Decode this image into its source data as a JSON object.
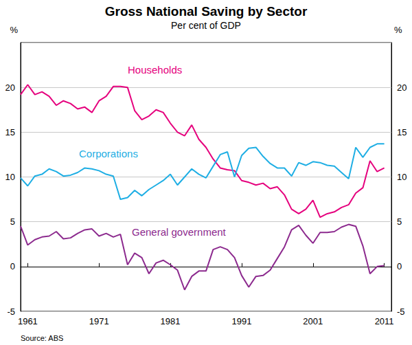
{
  "chart_data": {
    "type": "line",
    "title": "Gross National Saving by Sector",
    "subtitle": "Per cent of GDP",
    "ylabel": "%",
    "y2label": "%",
    "source": "Source: ABS",
    "x": [
      1960,
      1961,
      1962,
      1963,
      1964,
      1965,
      1966,
      1967,
      1968,
      1969,
      1970,
      1971,
      1972,
      1973,
      1974,
      1975,
      1976,
      1977,
      1978,
      1979,
      1980,
      1981,
      1982,
      1983,
      1984,
      1985,
      1986,
      1987,
      1988,
      1989,
      1990,
      1991,
      1992,
      1993,
      1994,
      1995,
      1996,
      1997,
      1998,
      1999,
      2000,
      2001,
      2002,
      2003,
      2004,
      2005,
      2006,
      2007,
      2008,
      2009,
      2010,
      2011
    ],
    "series": [
      {
        "name": "Households",
        "color": "#e5007d",
        "values": [
          19.2,
          20.3,
          19.2,
          19.5,
          19.0,
          18.0,
          18.5,
          18.2,
          17.6,
          17.8,
          17.2,
          18.5,
          19.0,
          20.1,
          20.1,
          20.0,
          17.4,
          16.4,
          16.8,
          17.5,
          17.2,
          16.0,
          15.0,
          14.6,
          15.8,
          14.2,
          13.3,
          12.0,
          11.0,
          10.8,
          10.7,
          9.6,
          9.4,
          9.1,
          9.3,
          8.7,
          8.9,
          8.0,
          6.4,
          5.9,
          6.4,
          7.4,
          5.5,
          5.9,
          6.1,
          6.6,
          6.9,
          8.2,
          8.8,
          11.8,
          10.6,
          11.0
        ]
      },
      {
        "name": "Corporations",
        "color": "#1eaee4",
        "values": [
          9.9,
          9.0,
          10.1,
          10.3,
          10.9,
          10.6,
          10.1,
          10.2,
          10.5,
          11.0,
          10.9,
          10.7,
          10.3,
          10.1,
          7.5,
          7.7,
          8.5,
          7.9,
          8.6,
          9.1,
          9.6,
          10.3,
          9.1,
          10.0,
          10.9,
          10.3,
          9.9,
          11.2,
          12.5,
          12.8,
          10.0,
          12.4,
          13.2,
          13.3,
          12.3,
          11.5,
          11.0,
          11.0,
          10.1,
          11.6,
          11.3,
          11.7,
          11.6,
          11.3,
          11.2,
          10.5,
          9.8,
          13.3,
          12.2,
          13.3,
          13.7,
          13.7
        ]
      },
      {
        "name": "General government",
        "color": "#8c2a8e",
        "values": [
          4.5,
          2.4,
          3.0,
          3.3,
          3.4,
          3.9,
          3.1,
          3.2,
          3.7,
          4.1,
          4.2,
          3.4,
          3.7,
          3.3,
          3.6,
          0.2,
          1.5,
          1.0,
          -0.8,
          0.4,
          0.7,
          0.2,
          -0.4,
          -2.6,
          -1.1,
          -0.5,
          -0.5,
          1.9,
          2.2,
          1.9,
          1.0,
          -1.0,
          -2.3,
          -1.1,
          -1.0,
          -0.4,
          0.9,
          2.2,
          4.1,
          4.6,
          3.5,
          2.6,
          3.8,
          3.8,
          3.9,
          4.4,
          4.7,
          4.5,
          2.3,
          -0.8,
          0.0,
          0.1
        ]
      }
    ],
    "xlim": [
      1960,
      2012
    ],
    "xticks": [
      1961,
      1971,
      1981,
      1991,
      2001,
      2011
    ],
    "ylim": [
      -5,
      25
    ],
    "yticks": [
      -5,
      0,
      5,
      10,
      15,
      20
    ],
    "y2lim": [
      -5,
      25
    ],
    "y2ticks": [
      -5,
      0,
      5,
      10,
      15,
      20
    ],
    "grid": true,
    "legend": false
  }
}
